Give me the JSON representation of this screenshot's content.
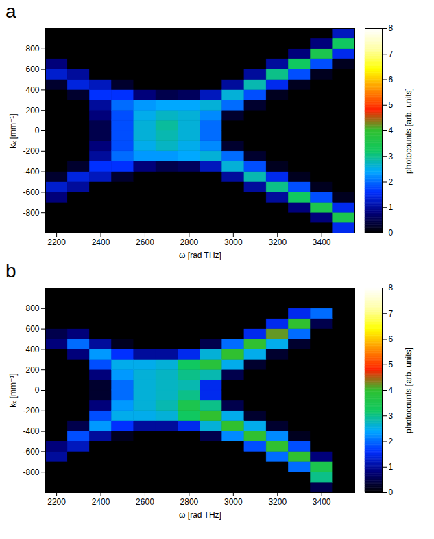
{
  "chart_data": [
    {
      "type": "heatmap",
      "panel_label": "a",
      "x_label": "ω [rad THz]",
      "y_label": "kₓ [mm⁻¹]",
      "xlim": [
        2150,
        3550
      ],
      "ylim": [
        -1000,
        1000
      ],
      "xticks": [
        2200,
        2400,
        2600,
        2800,
        3000,
        3200,
        3400
      ],
      "yticks": [
        -800,
        -600,
        -400,
        -200,
        0,
        200,
        400,
        600,
        800
      ],
      "x_edges": [
        2150,
        2250,
        2350,
        2450,
        2550,
        2650,
        2750,
        2850,
        2950,
        3050,
        3150,
        3250,
        3350,
        3450,
        3550
      ],
      "y_edges": [
        -1000,
        -900,
        -800,
        -700,
        -600,
        -500,
        -400,
        -300,
        -200,
        -100,
        0,
        100,
        200,
        300,
        400,
        500,
        600,
        700,
        800,
        900,
        1000
      ],
      "values": [
        [
          0,
          0,
          0,
          0,
          0,
          0,
          0,
          0,
          0,
          0,
          0,
          0,
          0,
          1.5
        ],
        [
          0,
          0,
          0,
          0,
          0,
          0,
          0,
          0,
          0,
          0,
          0,
          0,
          0.8,
          3.5
        ],
        [
          0,
          0,
          0,
          0,
          0,
          0,
          0,
          0,
          0,
          0,
          0,
          0.8,
          3.5,
          1.5
        ],
        [
          0.8,
          0,
          0,
          0,
          0,
          0,
          0,
          0,
          0,
          0,
          1.0,
          3.2,
          1.8,
          0.2
        ],
        [
          1.3,
          1.0,
          0,
          0,
          0,
          0,
          0,
          0,
          0,
          1.0,
          3.0,
          1.8,
          0.2,
          0
        ],
        [
          0.3,
          1.4,
          1.2,
          0.3,
          0,
          0,
          0,
          0,
          1.0,
          2.8,
          1.5,
          0.2,
          0,
          0
        ],
        [
          0,
          0.3,
          1.6,
          1.6,
          0.8,
          0.5,
          0.6,
          1.2,
          2.6,
          1.8,
          0.2,
          0,
          0,
          0
        ],
        [
          0,
          0,
          1.0,
          2.0,
          2.3,
          2.3,
          2.4,
          2.6,
          2.0,
          0.3,
          0,
          0,
          0,
          0
        ],
        [
          0,
          0,
          0.8,
          1.8,
          2.5,
          2.7,
          2.5,
          2.2,
          0.3,
          0,
          0,
          0,
          0,
          0
        ],
        [
          0,
          0,
          0.5,
          1.8,
          2.6,
          2.8,
          2.6,
          2.0,
          0,
          0,
          0,
          0,
          0,
          0
        ],
        [
          0,
          0,
          0.5,
          1.8,
          2.6,
          2.9,
          2.6,
          2.0,
          0,
          0,
          0,
          0,
          0,
          0
        ],
        [
          0,
          0,
          0.8,
          1.8,
          2.5,
          2.7,
          2.6,
          2.2,
          0.3,
          0,
          0,
          0,
          0,
          0
        ],
        [
          0,
          0,
          1.0,
          2.0,
          2.3,
          2.4,
          2.4,
          2.6,
          2.0,
          0.3,
          0,
          0,
          0,
          0
        ],
        [
          0,
          0.3,
          1.6,
          1.6,
          0.8,
          0.5,
          0.6,
          1.2,
          2.6,
          1.8,
          0.2,
          0,
          0,
          0
        ],
        [
          0.3,
          1.4,
          1.2,
          0.3,
          0,
          0,
          0,
          0,
          1.0,
          2.8,
          1.5,
          0.2,
          0,
          0
        ],
        [
          1.3,
          1.0,
          0,
          0,
          0,
          0,
          0,
          0,
          0,
          1.0,
          3.0,
          1.8,
          0.2,
          0
        ],
        [
          0.8,
          0,
          0,
          0,
          0,
          0,
          0,
          0,
          0,
          0,
          1.0,
          3.2,
          1.8,
          0.2
        ],
        [
          0,
          0,
          0,
          0,
          0,
          0,
          0,
          0,
          0,
          0,
          0,
          0.8,
          3.5,
          1.5
        ],
        [
          0,
          0,
          0,
          0,
          0,
          0,
          0,
          0,
          0,
          0,
          0,
          0,
          0.8,
          3.2
        ],
        [
          0,
          0,
          0,
          0,
          0,
          0,
          0,
          0,
          0,
          0,
          0,
          0,
          0,
          1.2
        ]
      ],
      "colorbar": {
        "label": "photocounts [arb. units]",
        "lim": [
          0,
          8
        ],
        "ticks": [
          0,
          1,
          2,
          3,
          4,
          5,
          6,
          7,
          8
        ]
      }
    },
    {
      "type": "heatmap",
      "panel_label": "b",
      "x_label": "ω [rad THz]",
      "y_label": "kₓ [mm⁻¹]",
      "xlim": [
        2150,
        3550
      ],
      "ylim": [
        -1000,
        1000
      ],
      "xticks": [
        2200,
        2400,
        2600,
        2800,
        3000,
        3200,
        3400
      ],
      "yticks": [
        -800,
        -600,
        -400,
        -200,
        0,
        200,
        400,
        600,
        800
      ],
      "x_edges": [
        2150,
        2250,
        2350,
        2450,
        2550,
        2650,
        2750,
        2850,
        2950,
        3050,
        3150,
        3250,
        3350,
        3450,
        3550
      ],
      "y_edges": [
        -1000,
        -900,
        -800,
        -700,
        -600,
        -500,
        -400,
        -300,
        -200,
        -100,
        0,
        100,
        200,
        300,
        400,
        500,
        600,
        700,
        800,
        900,
        1000
      ],
      "values": [
        [
          0,
          0,
          0,
          0,
          0,
          0,
          0,
          0,
          0,
          0,
          0,
          0,
          0.5,
          0
        ],
        [
          0,
          0,
          0,
          0,
          0,
          0,
          0,
          0,
          0,
          0,
          0,
          0,
          3.0,
          0
        ],
        [
          0,
          0,
          0,
          0,
          0,
          0,
          0,
          0,
          0,
          0,
          0,
          2.0,
          3.5,
          0
        ],
        [
          1.0,
          0,
          0,
          0,
          0,
          0,
          0,
          0,
          0,
          0,
          2.0,
          4.0,
          0.8,
          0
        ],
        [
          0.8,
          1.2,
          0,
          0,
          0,
          0,
          0,
          0,
          0,
          1.8,
          4.0,
          1.8,
          0,
          0
        ],
        [
          0,
          1.8,
          1.0,
          0.2,
          0,
          0,
          0,
          0.5,
          2.2,
          4.0,
          2.2,
          0.2,
          0,
          0
        ],
        [
          0,
          0.5,
          2.3,
          1.6,
          1.0,
          1.0,
          1.5,
          2.6,
          4.0,
          2.5,
          0.3,
          0,
          0,
          0
        ],
        [
          0,
          0,
          1.8,
          2.5,
          2.5,
          2.6,
          3.2,
          4.0,
          2.5,
          0.3,
          0,
          0,
          0,
          0
        ],
        [
          0,
          0,
          0.8,
          2.3,
          2.6,
          2.8,
          3.5,
          3.0,
          0.5,
          0,
          0,
          0,
          0,
          0
        ],
        [
          0,
          0,
          0.3,
          2.0,
          2.6,
          2.7,
          3.0,
          1.5,
          0,
          0,
          0,
          0,
          0,
          0
        ],
        [
          0,
          0,
          0.3,
          2.0,
          2.6,
          2.7,
          2.8,
          1.5,
          0,
          0,
          0,
          0,
          0,
          0
        ],
        [
          0,
          0,
          0.8,
          2.3,
          2.6,
          2.7,
          3.0,
          2.8,
          0.5,
          0,
          0,
          0,
          0,
          0
        ],
        [
          0,
          0,
          1.8,
          2.5,
          2.5,
          2.6,
          3.2,
          3.8,
          2.5,
          0.3,
          0,
          0,
          0,
          0
        ],
        [
          0,
          0.8,
          2.3,
          1.6,
          1.0,
          1.0,
          1.5,
          2.6,
          4.0,
          2.5,
          0.3,
          0,
          0,
          0
        ],
        [
          0.8,
          2.0,
          1.0,
          0.2,
          0,
          0,
          0,
          0.5,
          2.0,
          4.0,
          2.5,
          0.3,
          0,
          0
        ],
        [
          0.5,
          0.8,
          0,
          0,
          0,
          0,
          0,
          0,
          0,
          1.5,
          4.2,
          2.0,
          0,
          0
        ],
        [
          0,
          0,
          0,
          0,
          0,
          0,
          0,
          0,
          0,
          0,
          1.5,
          4.0,
          0.5,
          0
        ],
        [
          0,
          0,
          0,
          0,
          0,
          0,
          0,
          0,
          0,
          0,
          0,
          1.5,
          2.0,
          0
        ],
        [
          0,
          0,
          0,
          0,
          0,
          0,
          0,
          0,
          0,
          0,
          0,
          0,
          0,
          0
        ],
        [
          0,
          0,
          0,
          0,
          0,
          0,
          0,
          0,
          0,
          0,
          0,
          0,
          0,
          0
        ]
      ],
      "colorbar": {
        "label": "photocounts [arb. units]",
        "lim": [
          0,
          8
        ],
        "ticks": [
          0,
          1,
          2,
          3,
          4,
          5,
          6,
          7,
          8
        ]
      }
    }
  ]
}
